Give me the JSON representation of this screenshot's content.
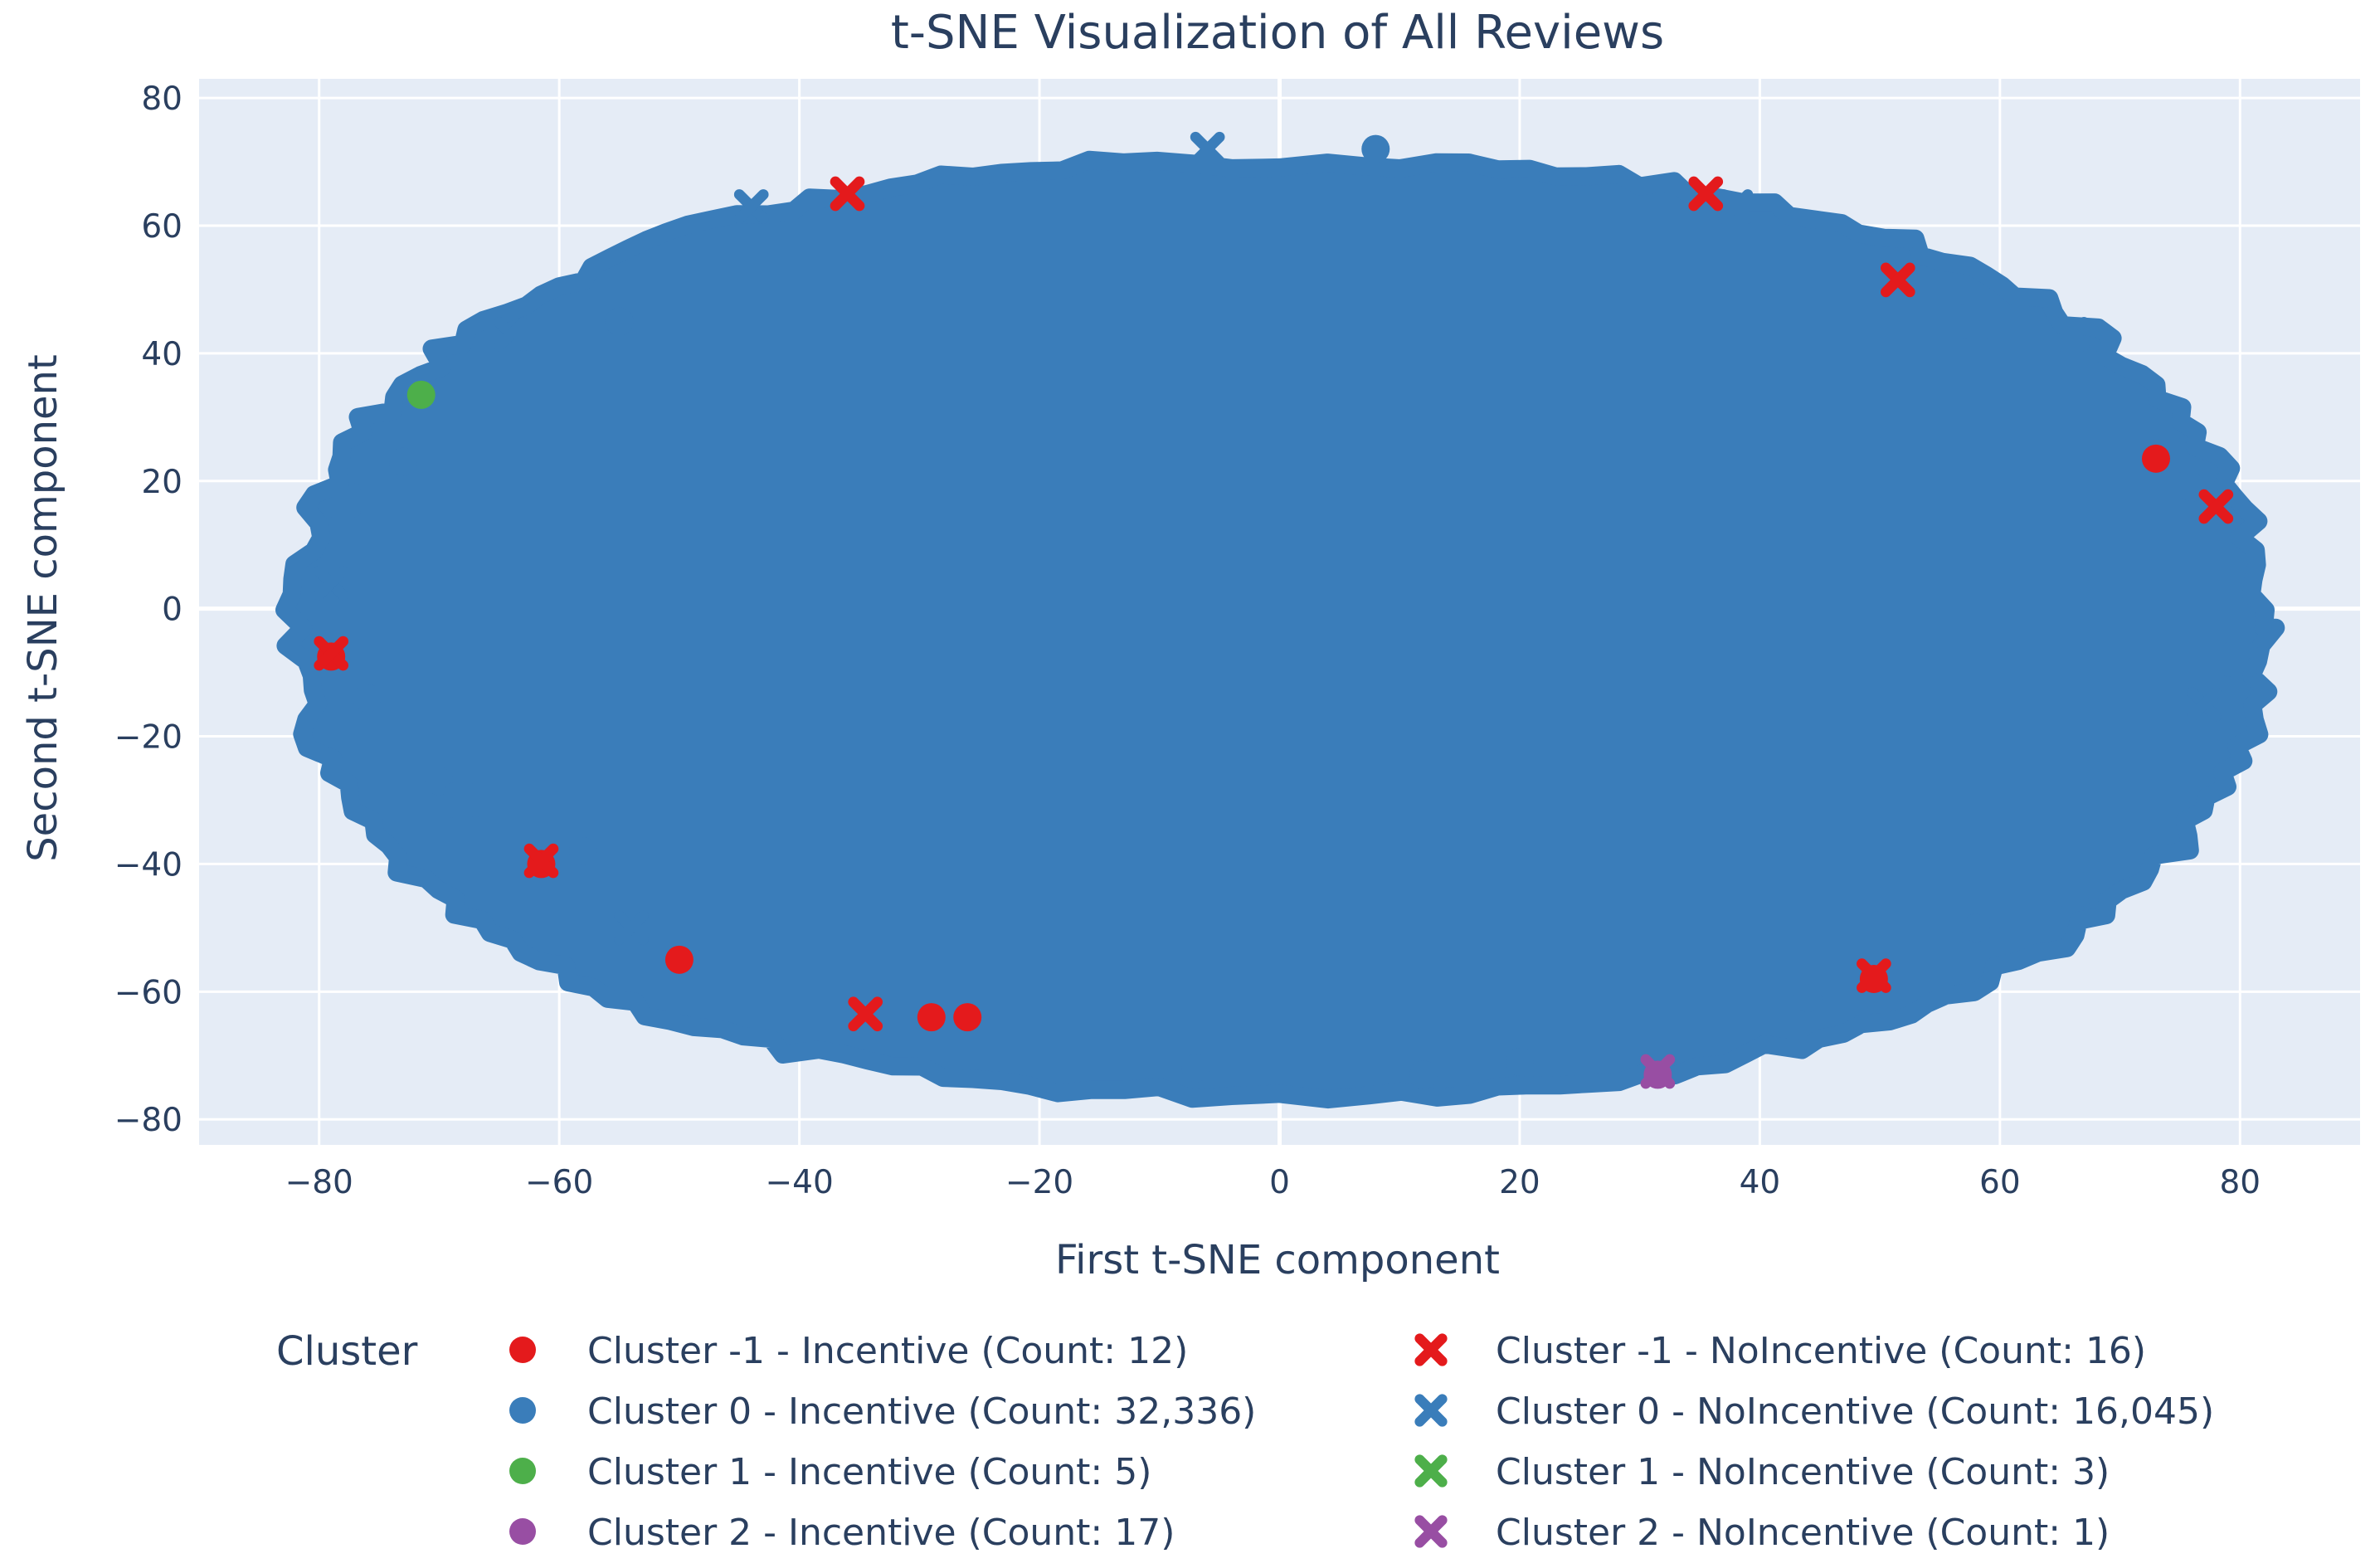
{
  "chart_data": {
    "type": "scatter",
    "title": "t-SNE Visualization of All Reviews",
    "xlabel": "First t-SNE component",
    "ylabel": "Second t-SNE component",
    "xlim": [
      -90,
      90
    ],
    "ylim": [
      -84,
      83
    ],
    "xticks": [
      -80,
      -60,
      -40,
      -20,
      0,
      20,
      40,
      60,
      80
    ],
    "yticks": [
      -80,
      -60,
      -40,
      -20,
      0,
      20,
      40,
      60,
      80
    ],
    "xtick_labels": [
      "−80",
      "−60",
      "−40",
      "−20",
      "0",
      "20",
      "40",
      "60",
      "80"
    ],
    "ytick_labels": [
      "−80",
      "−60",
      "−40",
      "−20",
      "0",
      "20",
      "40",
      "60",
      "80"
    ],
    "grid": true,
    "background": "#e5ecf6",
    "legend_title": "Cluster",
    "legend_position": "bottom",
    "main_cloud": {
      "series": "Cluster 0",
      "color": "#3a7dba",
      "center": [
        0,
        -3
      ],
      "half_width": 82,
      "half_height": 73
    },
    "series": [
      {
        "name": "Cluster -1 - Incentive (Count: 12)",
        "color": "#e41a1c",
        "marker": "circle",
        "points": [
          [
            -79,
            -7.5
          ],
          [
            -61.5,
            -40
          ],
          [
            -50,
            -55
          ],
          [
            -29,
            -64
          ],
          [
            -26,
            -64
          ],
          [
            49.5,
            -58
          ],
          [
            73,
            23.5
          ]
        ]
      },
      {
        "name": "Cluster 0 - Incentive (Count: 32,336)",
        "color": "#3a7dba",
        "marker": "circle",
        "points": [
          [
            -76,
            -14
          ],
          [
            -73,
            23
          ],
          [
            -70,
            -27
          ],
          [
            -58,
            -38
          ],
          [
            8,
            72
          ],
          [
            12,
            -73
          ],
          [
            -7,
            -72
          ],
          [
            20,
            -71
          ],
          [
            44,
            -61
          ],
          [
            58,
            -50
          ],
          [
            76,
            19
          ],
          [
            -55,
            45
          ]
        ]
      },
      {
        "name": "Cluster 1 - Incentive (Count: 5)",
        "color": "#4daf4a",
        "marker": "circle",
        "points": [
          [
            -71.5,
            33.5
          ]
        ]
      },
      {
        "name": "Cluster 2 - Incentive (Count: 17)",
        "color": "#984ea3",
        "marker": "circle",
        "points": [
          [
            31.5,
            -73
          ]
        ]
      },
      {
        "name": "Cluster -1 - NoIncentive (Count: 16)",
        "color": "#e41a1c",
        "marker": "x",
        "points": [
          [
            -36,
            65
          ],
          [
            35.5,
            65
          ],
          [
            51.5,
            51.5
          ],
          [
            78,
            16
          ],
          [
            -34.5,
            -63.5
          ],
          [
            -61.5,
            -39.5
          ],
          [
            49.5,
            -57.5
          ],
          [
            -79,
            -7
          ]
        ]
      },
      {
        "name": "Cluster 0 - NoIncentive (Count: 16,045)",
        "color": "#3a7dba",
        "marker": "x",
        "points": [
          [
            -78,
            17
          ],
          [
            -79,
            4
          ],
          [
            -64,
            43
          ],
          [
            -44,
            63
          ],
          [
            66,
            43
          ],
          [
            80,
            -8
          ],
          [
            77,
            -15
          ],
          [
            -54,
            -50
          ],
          [
            66,
            -44
          ],
          [
            38,
            63
          ],
          [
            -6,
            72
          ],
          [
            74,
            24
          ],
          [
            58,
            45
          ],
          [
            -68,
            -30
          ]
        ]
      },
      {
        "name": "Cluster 1 - NoIncentive (Count: 3)",
        "color": "#4daf4a",
        "marker": "x",
        "points": []
      },
      {
        "name": "Cluster 2 - NoIncentive (Count: 1)",
        "color": "#984ea3",
        "marker": "x",
        "points": [
          [
            31.5,
            -72.5
          ]
        ]
      }
    ]
  }
}
